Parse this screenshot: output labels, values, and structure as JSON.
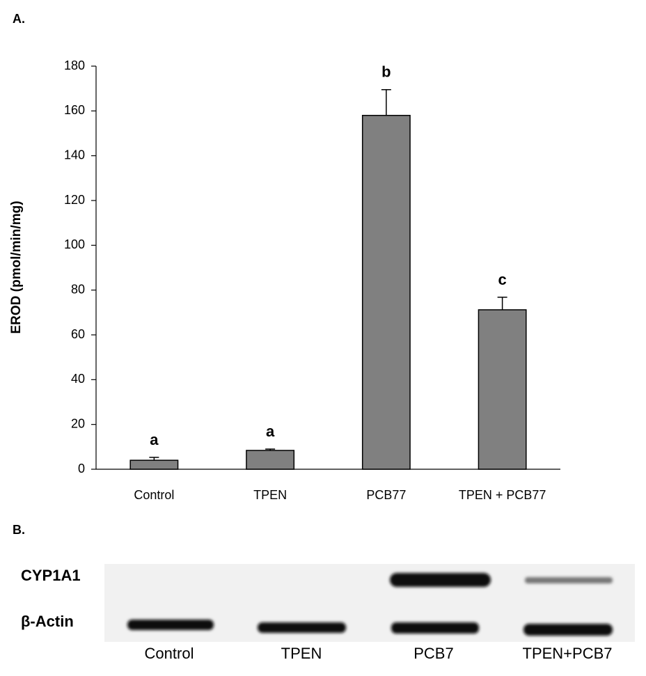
{
  "chart_data": {
    "type": "bar",
    "panel_label": "A.",
    "y_label": "EROD (pmol/min/mg)",
    "categories": [
      "Control",
      "TPEN",
      "PCB77",
      "TPEN + PCB77"
    ],
    "values": [
      4,
      8.4,
      158,
      71.2
    ],
    "errors": [
      1.3,
      0.6,
      11.5,
      5.6
    ],
    "annotations": [
      "a",
      "a",
      "b",
      "c"
    ],
    "color": "#808080",
    "ylim": [
      0,
      180
    ],
    "yticks": [
      0,
      20,
      40,
      60,
      80,
      100,
      120,
      140,
      160,
      180
    ]
  },
  "blot": {
    "panel_label": "B.",
    "rows": [
      "CYP1A1",
      "β-Actin"
    ],
    "lanes": [
      "Control",
      "TPEN",
      "PCB7",
      "TPEN+PCB7"
    ]
  }
}
